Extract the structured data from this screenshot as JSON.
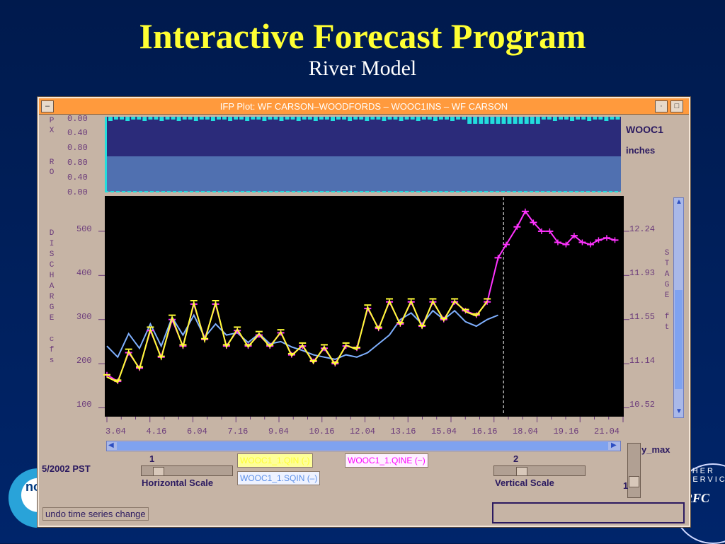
{
  "slide": {
    "title": "Interactive Forecast Program",
    "subtitle": "River Model"
  },
  "window": {
    "title": "IFP Plot:  WF CARSON–WOODFORDS  – WOOC1INS –  WF CARSON"
  },
  "top_panel": {
    "px_letters": [
      "P",
      "X"
    ],
    "ro_letters": [
      "R",
      "O"
    ],
    "px_ticks": [
      "0.00",
      "0.40",
      "0.80"
    ],
    "ro_ticks": [
      "0.80",
      "0.40",
      "0.00"
    ],
    "station": "WOOC1",
    "units": "inches"
  },
  "main_plot": {
    "left_axis_letters": [
      "D",
      "I",
      "S",
      "C",
      "H",
      "A",
      "R",
      "G",
      "E",
      "",
      "c",
      "f",
      "s"
    ],
    "right_axis_letters": [
      "S",
      "T",
      "A",
      "G",
      "E",
      "",
      "f",
      "t"
    ],
    "left_ticks": [
      "500",
      "400",
      "300",
      "200",
      "100"
    ],
    "right_ticks": [
      "12.24",
      "11.93",
      "11.55",
      "11.14",
      "10.52"
    ],
    "x_ticks": [
      "3.04",
      "4.16",
      "6.04",
      "7.16",
      "9.04",
      "10.16",
      "12.04",
      "13.16",
      "15.04",
      "16.16",
      "18.04",
      "19.16",
      "21.04"
    ]
  },
  "chart_data": {
    "type": "line",
    "xlabel": "",
    "ylabel": "DISCHARGE cfs",
    "y2label": "STAGE ft",
    "ylim": [
      80,
      580
    ],
    "x_ticks": [
      "3.04",
      "4.16",
      "6.04",
      "7.16",
      "9.04",
      "10.16",
      "12.04",
      "13.16",
      "15.04",
      "16.16",
      "18.04",
      "19.16",
      "21.04"
    ],
    "current_time_marker": "17.5",
    "series": [
      {
        "name": "WOOC1_1.SQIN (–)",
        "color": "#7fb0ff",
        "x": [
          2.9,
          3.3,
          3.7,
          4.1,
          4.5,
          4.9,
          5.3,
          5.7,
          6.1,
          6.5,
          6.9,
          7.3,
          7.7,
          8.1,
          8.5,
          8.9,
          9.3,
          9.7,
          10.1,
          10.5,
          10.9,
          11.3,
          11.7,
          12.1,
          12.5,
          12.9,
          13.3,
          13.7,
          14.1,
          14.5,
          14.9,
          15.3,
          15.7,
          16.1,
          16.5,
          16.9,
          17.3
        ],
        "y": [
          240,
          215,
          268,
          235,
          290,
          240,
          305,
          265,
          310,
          260,
          290,
          265,
          270,
          248,
          268,
          245,
          250,
          238,
          230,
          220,
          215,
          210,
          220,
          215,
          225,
          245,
          265,
          300,
          315,
          290,
          320,
          300,
          320,
          295,
          285,
          300,
          310
        ]
      },
      {
        "name": "WOOC1_1.QINE (~)",
        "color": "#ff33ff",
        "x": [
          2.9,
          3.3,
          3.7,
          4.1,
          4.5,
          4.9,
          5.3,
          5.7,
          6.1,
          6.5,
          6.9,
          7.3,
          7.7,
          8.1,
          8.5,
          8.9,
          9.3,
          9.7,
          10.1,
          10.5,
          10.9,
          11.3,
          11.7,
          12.1,
          12.5,
          12.9,
          13.3,
          13.7,
          14.1,
          14.5,
          14.9,
          15.3,
          15.7,
          16.1,
          16.5,
          16.9,
          17.3,
          17.6,
          18.0,
          18.3,
          18.6,
          18.9,
          19.2,
          19.5,
          19.8,
          20.1,
          20.4,
          20.7,
          21.0,
          21.3,
          21.6
        ],
        "y": [
          175,
          160,
          225,
          190,
          275,
          215,
          300,
          240,
          335,
          255,
          335,
          240,
          275,
          240,
          265,
          240,
          270,
          220,
          240,
          205,
          235,
          200,
          240,
          235,
          325,
          280,
          340,
          290,
          340,
          285,
          340,
          300,
          340,
          320,
          310,
          340,
          440,
          470,
          510,
          545,
          520,
          500,
          500,
          475,
          470,
          490,
          475,
          470,
          480,
          485,
          480
        ]
      },
      {
        "name": "WOOC1_1.QIN (-)",
        "color": "#ffff33",
        "x": [
          2.9,
          3.3,
          3.7,
          4.1,
          4.5,
          4.9,
          5.3,
          5.7,
          6.1,
          6.5,
          6.9,
          7.3,
          7.7,
          8.1,
          8.5,
          8.9,
          9.3,
          9.7,
          10.1,
          10.5,
          10.9,
          11.3,
          11.7,
          12.1,
          12.5,
          12.9,
          13.3,
          13.7,
          14.1,
          14.5,
          14.9,
          15.3,
          15.7,
          16.1,
          16.5,
          16.9
        ],
        "y": [
          170,
          158,
          228,
          188,
          278,
          212,
          305,
          238,
          338,
          252,
          338,
          238,
          278,
          238,
          268,
          238,
          272,
          218,
          242,
          202,
          238,
          198,
          242,
          232,
          328,
          278,
          342,
          288,
          342,
          282,
          342,
          298,
          342,
          318,
          308,
          342
        ]
      }
    ]
  },
  "controls": {
    "date_label": "5/2002 PST",
    "horizontal_scale_value": "1",
    "horizontal_scale_label": "Horizontal Scale",
    "vertical_scale_value": "2",
    "vertical_scale_label": "Vertical Scale",
    "y_max_label": "y_max",
    "y_max_value": "1",
    "undo_label": "undo time series change",
    "legend": {
      "qin": "WOOC1_1.QIN (-)",
      "qine": "WOOC1_1.QINE (~)",
      "sqin": "WOOC1_1.SQIN (–)"
    }
  },
  "logos": {
    "noaa_partial": "no",
    "rfc": "RFC",
    "rfc_arc": "THER SERVICE"
  }
}
